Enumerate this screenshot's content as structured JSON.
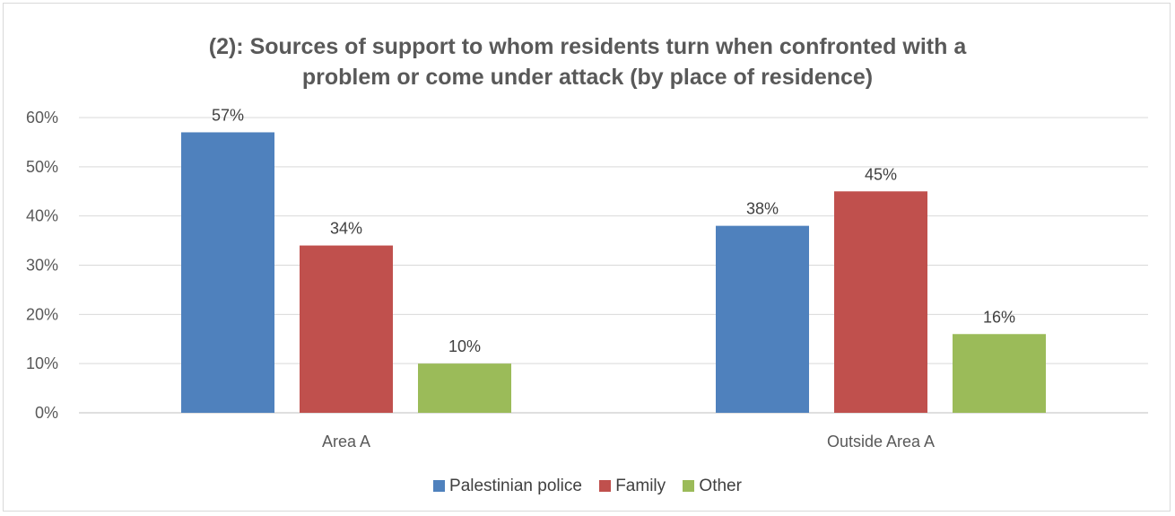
{
  "chart_data": {
    "type": "bar",
    "title_lines": [
      "(2): Sources of support to whom residents turn when confronted with a",
      "problem or come under attack (by place of residence)"
    ],
    "categories": [
      "Area A",
      "Outside Area A"
    ],
    "series": [
      {
        "name": "Palestinian police",
        "values": [
          57,
          38
        ],
        "labels": [
          "57%",
          "38%"
        ],
        "color": "#4f81bd"
      },
      {
        "name": "Family",
        "values": [
          34,
          45
        ],
        "labels": [
          "34%",
          "45%"
        ],
        "color": "#c0504d"
      },
      {
        "name": "Other",
        "values": [
          10,
          16
        ],
        "labels": [
          "10%",
          "16%"
        ],
        "color": "#9bbb59"
      }
    ],
    "yticks": [
      "0%",
      "10%",
      "20%",
      "30%",
      "40%",
      "50%",
      "60%"
    ],
    "ylim": [
      0,
      60
    ],
    "grid": true,
    "legend_position": "bottom",
    "xlabel": "",
    "ylabel": ""
  }
}
